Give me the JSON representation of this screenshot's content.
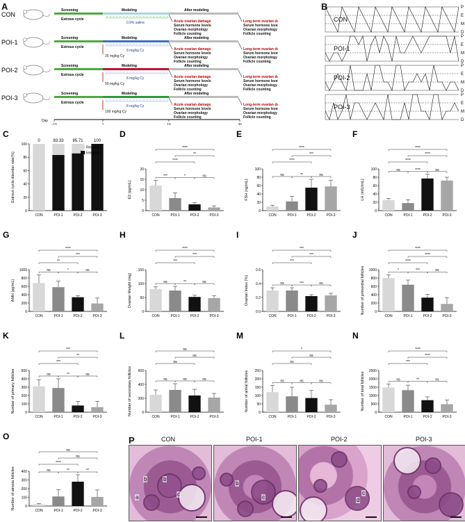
{
  "panel_letters": [
    "A",
    "B",
    "C",
    "D",
    "E",
    "F",
    "G",
    "H",
    "I",
    "J",
    "K",
    "L",
    "M",
    "N",
    "O",
    "P"
  ],
  "panelA": {
    "groups": [
      {
        "name": "CON",
        "treatment": "0.9% saline",
        "dose": ""
      },
      {
        "name": "POI-1",
        "treatment": "8 mg/kg Cy",
        "dose": "25 mg/kg Cy"
      },
      {
        "name": "POI-2",
        "treatment": "8 mg/kg Cy",
        "dose": "50 mg/kg Cy"
      },
      {
        "name": "POI-3",
        "treatment": "8 mg/kg Cy",
        "dose": "100 mg/kg Cy"
      }
    ],
    "phase_labels": {
      "screening": "Screening",
      "modeling": "Modeling",
      "after": "After modeling",
      "estrous": "Estrous cycle"
    },
    "acute": [
      "Acute ovarian damage",
      "Serum hormone levels",
      "Ovarian morphology",
      "Follicle counting"
    ],
    "longterm": [
      "Long-term ovarian damage",
      "Serum hormone levels",
      "Ovarian morphology",
      "Follicle counting"
    ],
    "day_axis": {
      "label": "Day",
      "ticks": [
        "-10",
        "1",
        "15",
        "30"
      ]
    }
  },
  "panelB": {
    "groups": [
      "CON",
      "POI-1",
      "POI-2",
      "POI-3"
    ],
    "stages": [
      "P",
      "E",
      "M",
      "D"
    ]
  },
  "panelP": {
    "groups": [
      "CON",
      "POI-1",
      "POI-2",
      "POI-3"
    ],
    "markers": [
      "a",
      "b",
      "c",
      "b",
      "b",
      "c",
      "d",
      "c"
    ]
  },
  "chart_data": [
    {
      "panel": "C",
      "type": "bar",
      "ylabel": "Estrous cycle disorder rate(%)",
      "categories": [
        "CON",
        "POI-1",
        "POI-2",
        "POI-3"
      ],
      "series": [
        {
          "name": "Regular",
          "values": [
            100,
            16.67,
            14.29,
            0
          ]
        },
        {
          "name": "Irregular",
          "values": [
            0,
            83.33,
            85.71,
            100
          ]
        }
      ],
      "data_labels": [
        "0",
        "83.33",
        "85.71",
        "100"
      ],
      "ylim": [
        0,
        100
      ],
      "yticks": [
        "0",
        "20",
        "40",
        "60",
        "80",
        "100"
      ],
      "legend": "top-right",
      "stacked": true
    },
    {
      "panel": "D",
      "type": "bar",
      "ylabel": "E2 (pg/mL)",
      "categories": [
        "CON",
        "POI-1",
        "POI-2",
        "POI-3"
      ],
      "values": [
        12,
        6,
        3,
        1.5
      ],
      "errors": [
        2.5,
        2.5,
        0.8,
        0.8
      ],
      "ylim": [
        0,
        20
      ],
      "yticks": [
        "0",
        "5",
        "10",
        "15",
        "20"
      ],
      "sig": [
        {
          "a": 0,
          "b": 1,
          "t": "***"
        },
        {
          "a": 1,
          "b": 2,
          "t": "*"
        },
        {
          "a": 2,
          "b": 3,
          "t": "ns"
        },
        {
          "a": 0,
          "b": 2,
          "t": "****"
        },
        {
          "a": 0,
          "b": 3,
          "t": "****"
        },
        {
          "a": 1,
          "b": 3,
          "t": "**"
        }
      ]
    },
    {
      "panel": "E",
      "type": "bar",
      "ylabel": "FSH (ng/mL)",
      "categories": [
        "CON",
        "POI-1",
        "POI-2",
        "POI-3"
      ],
      "values": [
        10,
        22,
        55,
        58
      ],
      "errors": [
        3,
        12,
        20,
        15
      ],
      "ylim": [
        0,
        100
      ],
      "yticks": [
        "0",
        "20",
        "40",
        "60",
        "80",
        "100"
      ],
      "sig": [
        {
          "a": 0,
          "b": 1,
          "t": "ns"
        },
        {
          "a": 1,
          "b": 2,
          "t": "**"
        },
        {
          "a": 2,
          "b": 3,
          "t": "ns"
        },
        {
          "a": 0,
          "b": 2,
          "t": "****"
        },
        {
          "a": 0,
          "b": 3,
          "t": "****"
        },
        {
          "a": 1,
          "b": 3,
          "t": "***"
        }
      ]
    },
    {
      "panel": "F",
      "type": "bar",
      "ylabel": "LH (mIU/mL)",
      "categories": [
        "CON",
        "POI-1",
        "POI-2",
        "POI-3"
      ],
      "values": [
        25,
        18,
        77,
        72
      ],
      "errors": [
        4,
        8,
        10,
        8
      ],
      "ylim": [
        0,
        100
      ],
      "yticks": [
        "0",
        "20",
        "40",
        "60",
        "80",
        "100"
      ],
      "sig": [
        {
          "a": 0,
          "b": 1,
          "t": "ns"
        },
        {
          "a": 1,
          "b": 2,
          "t": "****"
        },
        {
          "a": 2,
          "b": 3,
          "t": "ns"
        },
        {
          "a": 0,
          "b": 2,
          "t": "****"
        },
        {
          "a": 0,
          "b": 3,
          "t": "****"
        },
        {
          "a": 1,
          "b": 3,
          "t": "****"
        }
      ]
    },
    {
      "panel": "G",
      "type": "bar",
      "ylabel": "AMH (pg/mL)",
      "categories": [
        "CON",
        "POI-1",
        "POI-2",
        "POI-3"
      ],
      "values": [
        680,
        580,
        340,
        190
      ],
      "errors": [
        200,
        150,
        40,
        130
      ],
      "ylim": [
        0,
        1000
      ],
      "yticks": [
        "0",
        "200",
        "400",
        "600",
        "800",
        "1000"
      ],
      "sig": [
        {
          "a": 0,
          "b": 1,
          "t": "ns"
        },
        {
          "a": 1,
          "b": 2,
          "t": "*"
        },
        {
          "a": 2,
          "b": 3,
          "t": "ns"
        },
        {
          "a": 0,
          "b": 2,
          "t": "**"
        },
        {
          "a": 0,
          "b": 3,
          "t": "****"
        },
        {
          "a": 1,
          "b": 3,
          "t": "***"
        }
      ]
    },
    {
      "panel": "H",
      "type": "bar",
      "ylabel": "Ovarian Weight (mg)",
      "categories": [
        "CON",
        "POI-1",
        "POI-2",
        "POI-3"
      ],
      "values": [
        80,
        75,
        52,
        48
      ],
      "errors": [
        8,
        15,
        6,
        8
      ],
      "ylim": [
        0,
        150
      ],
      "yticks": [
        "0",
        "50",
        "100",
        "150"
      ],
      "sig": [
        {
          "a": 0,
          "b": 1,
          "t": "ns"
        },
        {
          "a": 1,
          "b": 2,
          "t": "**"
        },
        {
          "a": 2,
          "b": 3,
          "t": "ns"
        },
        {
          "a": 0,
          "b": 2,
          "t": "***"
        },
        {
          "a": 0,
          "b": 3,
          "t": "****"
        },
        {
          "a": 1,
          "b": 3,
          "t": "***"
        }
      ]
    },
    {
      "panel": "I",
      "type": "bar",
      "ylabel": "Ovarian Index (%)",
      "categories": [
        "CON",
        "POI-1",
        "POI-2",
        "POI-3"
      ],
      "values": [
        0.3,
        0.3,
        0.22,
        0.23
      ],
      "errors": [
        0.04,
        0.04,
        0.02,
        0.03
      ],
      "ylim": [
        0,
        0.6
      ],
      "yticks": [
        "0.0",
        "0.2",
        "0.4",
        "0.6"
      ],
      "sig": [
        {
          "a": 0,
          "b": 1,
          "t": "ns"
        },
        {
          "a": 1,
          "b": 2,
          "t": "***"
        },
        {
          "a": 2,
          "b": 3,
          "t": "ns"
        },
        {
          "a": 0,
          "b": 2,
          "t": "***"
        },
        {
          "a": 0,
          "b": 3,
          "t": "***"
        },
        {
          "a": 1,
          "b": 3,
          "t": "***"
        }
      ]
    },
    {
      "panel": "J",
      "type": "bar",
      "ylabel": "Number of primordial follicles",
      "categories": [
        "CON",
        "POI-1",
        "POI-2",
        "POI-3"
      ],
      "values": [
        800,
        640,
        330,
        180
      ],
      "errors": [
        80,
        110,
        80,
        150
      ],
      "ylim": [
        0,
        1000
      ],
      "yticks": [
        "0",
        "200",
        "400",
        "600",
        "800",
        "1000"
      ],
      "sig": [
        {
          "a": 0,
          "b": 1,
          "t": "*"
        },
        {
          "a": 1,
          "b": 2,
          "t": "***"
        },
        {
          "a": 2,
          "b": 3,
          "t": "ns"
        },
        {
          "a": 0,
          "b": 2,
          "t": "****"
        },
        {
          "a": 0,
          "b": 3,
          "t": "****"
        },
        {
          "a": 1,
          "b": 3,
          "t": "****"
        }
      ]
    },
    {
      "panel": "K",
      "type": "bar",
      "ylabel": "Number of primary follicles",
      "categories": [
        "CON",
        "POI-1",
        "POI-2",
        "POI-3"
      ],
      "values": [
        310,
        290,
        80,
        60
      ],
      "errors": [
        80,
        110,
        50,
        70
      ],
      "ylim": [
        0,
        500
      ],
      "yticks": [
        "0",
        "100",
        "200",
        "300",
        "400",
        "500"
      ],
      "sig": [
        {
          "a": 0,
          "b": 1,
          "t": "ns"
        },
        {
          "a": 1,
          "b": 2,
          "t": "**"
        },
        {
          "a": 2,
          "b": 3,
          "t": "ns"
        },
        {
          "a": 0,
          "b": 2,
          "t": "***"
        },
        {
          "a": 0,
          "b": 3,
          "t": "***"
        },
        {
          "a": 1,
          "b": 3,
          "t": "**"
        }
      ]
    },
    {
      "panel": "L",
      "type": "bar",
      "ylabel": "Number of secondary follicles",
      "categories": [
        "CON",
        "POI-1",
        "POI-2",
        "POI-3"
      ],
      "values": [
        250,
        320,
        240,
        210
      ],
      "errors": [
        70,
        90,
        90,
        60
      ],
      "ylim": [
        0,
        600
      ],
      "yticks": [
        "0",
        "200",
        "400",
        "600"
      ],
      "sig": [
        {
          "a": 0,
          "b": 1,
          "t": "ns"
        },
        {
          "a": 1,
          "b": 2,
          "t": "ns"
        },
        {
          "a": 2,
          "b": 3,
          "t": "ns"
        },
        {
          "a": 0,
          "b": 2,
          "t": "ns"
        },
        {
          "a": 0,
          "b": 3,
          "t": "ns"
        },
        {
          "a": 1,
          "b": 3,
          "t": "ns"
        }
      ]
    },
    {
      "panel": "M",
      "type": "bar",
      "ylabel": "Number of antral follicles",
      "categories": [
        "CON",
        "POI-1",
        "POI-2",
        "POI-3"
      ],
      "values": [
        120,
        95,
        85,
        45
      ],
      "errors": [
        40,
        55,
        45,
        30
      ],
      "ylim": [
        0,
        250
      ],
      "yticks": [
        "0",
        "50",
        "100",
        "150",
        "200",
        "250"
      ],
      "sig": [
        {
          "a": 0,
          "b": 1,
          "t": "ns"
        },
        {
          "a": 1,
          "b": 2,
          "t": "ns"
        },
        {
          "a": 2,
          "b": 3,
          "t": "ns"
        },
        {
          "a": 0,
          "b": 2,
          "t": "ns"
        },
        {
          "a": 0,
          "b": 3,
          "t": "*"
        },
        {
          "a": 1,
          "b": 3,
          "t": "ns"
        }
      ]
    },
    {
      "panel": "N",
      "type": "bar",
      "ylabel": "Number of total follicles",
      "categories": [
        "CON",
        "POI-1",
        "POI-2",
        "POI-3"
      ],
      "values": [
        1480,
        1320,
        720,
        480
      ],
      "errors": [
        200,
        300,
        200,
        250
      ],
      "ylim": [
        0,
        2500
      ],
      "yticks": [
        "0",
        "500",
        "1000",
        "1500",
        "2000",
        "2500"
      ],
      "sig": [
        {
          "a": 0,
          "b": 1,
          "t": "ns"
        },
        {
          "a": 1,
          "b": 2,
          "t": "**"
        },
        {
          "a": 2,
          "b": 3,
          "t": "ns"
        },
        {
          "a": 0,
          "b": 2,
          "t": "***"
        },
        {
          "a": 0,
          "b": 3,
          "t": "****"
        },
        {
          "a": 1,
          "b": 3,
          "t": "****"
        }
      ]
    },
    {
      "panel": "O",
      "type": "bar",
      "ylabel": "Number of atresia follicles",
      "categories": [
        "CON",
        "POI-1",
        "POI-2",
        "POI-3"
      ],
      "values": [
        20,
        110,
        280,
        105
      ],
      "errors": [
        8,
        80,
        80,
        80
      ],
      "ylim": [
        0,
        400
      ],
      "yticks": [
        "0",
        "100",
        "200",
        "300",
        "400"
      ],
      "sig": [
        {
          "a": 0,
          "b": 1,
          "t": "ns"
        },
        {
          "a": 1,
          "b": 2,
          "t": "**"
        },
        {
          "a": 2,
          "b": 3,
          "t": "**"
        },
        {
          "a": 0,
          "b": 2,
          "t": "****"
        },
        {
          "a": 0,
          "b": 3,
          "t": "ns"
        },
        {
          "a": 1,
          "b": 3,
          "t": "ns"
        }
      ]
    }
  ]
}
